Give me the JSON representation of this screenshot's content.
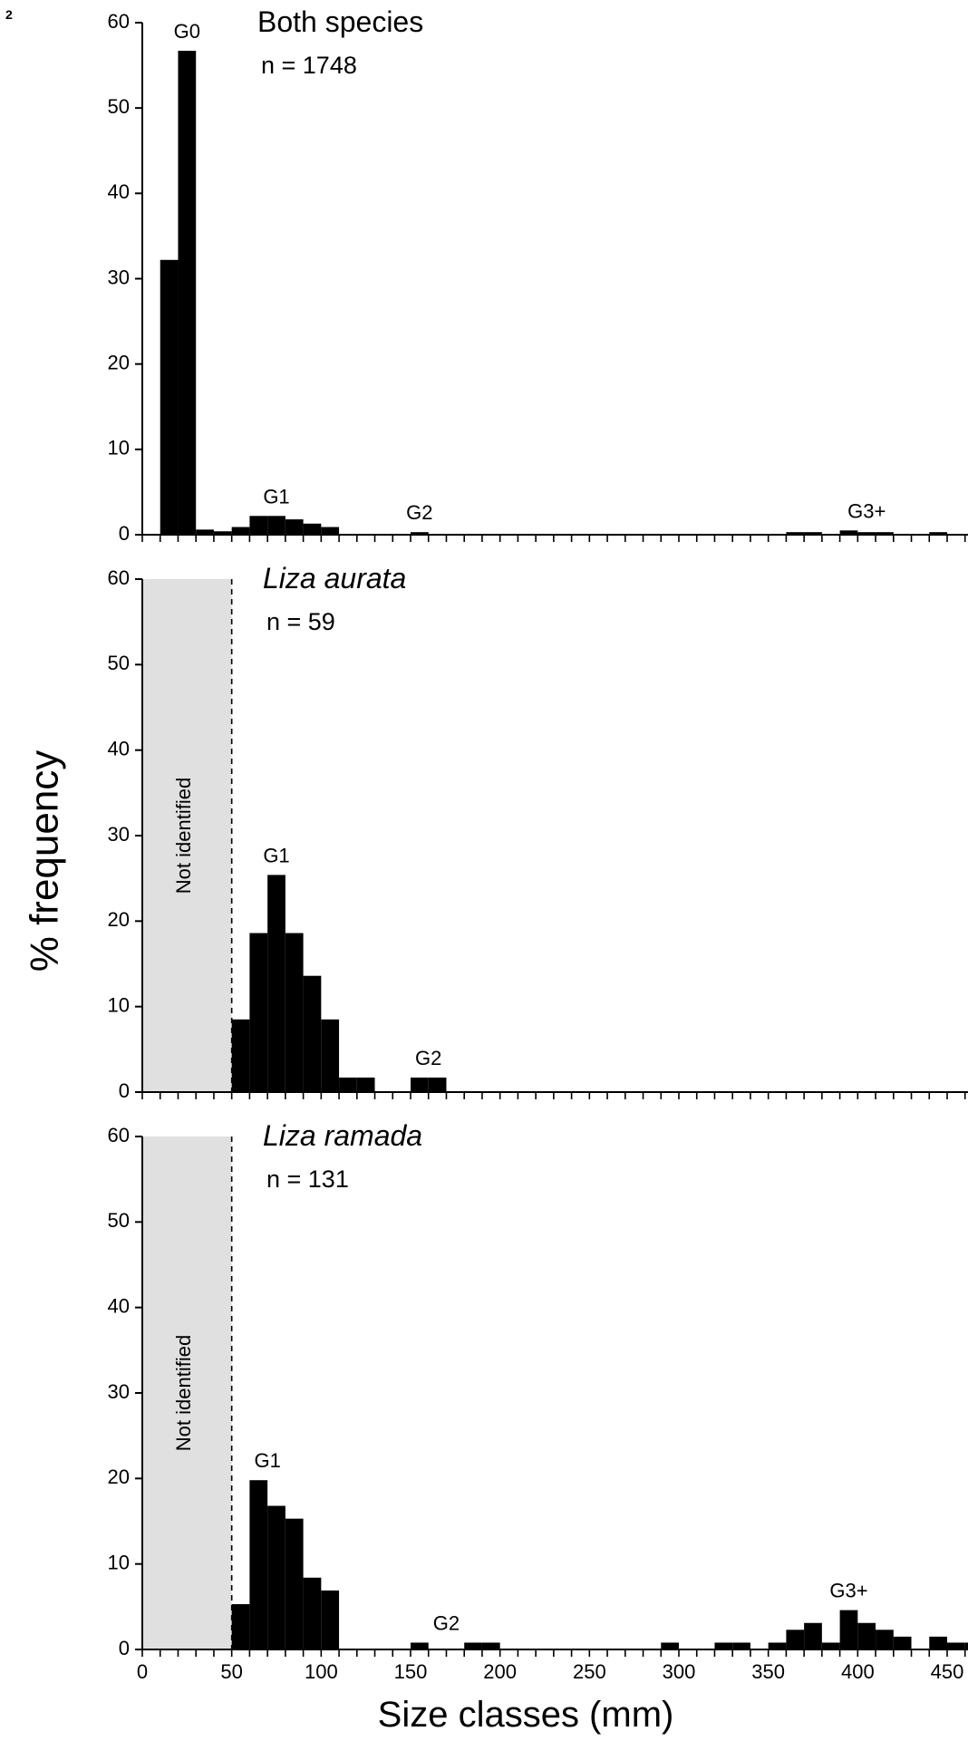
{
  "figure_label": "2",
  "chart_data": {
    "type": "bar",
    "ylabel": "% frequency",
    "xlabel": "Size classes (mm)",
    "bin_width": 10,
    "xlim": [
      0,
      470
    ],
    "xticks": [
      0,
      50,
      100,
      150,
      200,
      250,
      300,
      350,
      400,
      450
    ],
    "ylim": [
      0,
      60
    ],
    "yticks": [
      0,
      10,
      20,
      30,
      40,
      50,
      60
    ],
    "bar_color": "#000000",
    "shade_color": "#e0e0e0",
    "panels": [
      {
        "title": "Both species",
        "title_italic": false,
        "n_label": "n = 1748",
        "not_identified": null,
        "bins": [
          {
            "x": 10,
            "y": 32.2
          },
          {
            "x": 20,
            "y": 56.7
          },
          {
            "x": 30,
            "y": 0.6
          },
          {
            "x": 40,
            "y": 0.4
          },
          {
            "x": 50,
            "y": 0.9
          },
          {
            "x": 60,
            "y": 2.2
          },
          {
            "x": 70,
            "y": 2.2
          },
          {
            "x": 80,
            "y": 1.8
          },
          {
            "x": 90,
            "y": 1.3
          },
          {
            "x": 100,
            "y": 0.9
          },
          {
            "x": 150,
            "y": 0.3
          },
          {
            "x": 360,
            "y": 0.3
          },
          {
            "x": 370,
            "y": 0.3
          },
          {
            "x": 390,
            "y": 0.5
          },
          {
            "x": 400,
            "y": 0.3
          },
          {
            "x": 410,
            "y": 0.3
          },
          {
            "x": 440,
            "y": 0.3
          }
        ],
        "groups": [
          {
            "label": "G0",
            "x": 25,
            "y": 56.7
          },
          {
            "label": "G1",
            "x": 75,
            "y": 2.2
          },
          {
            "label": "G2",
            "x": 155,
            "y": 0.3
          },
          {
            "label": "G3+",
            "x": 405,
            "y": 0.5
          }
        ]
      },
      {
        "title": "Liza aurata",
        "title_italic": true,
        "n_label": "n = 59",
        "not_identified": {
          "label": "Not identified",
          "x_max": 50
        },
        "bins": [
          {
            "x": 50,
            "y": 8.5
          },
          {
            "x": 60,
            "y": 18.6
          },
          {
            "x": 70,
            "y": 25.4
          },
          {
            "x": 80,
            "y": 18.6
          },
          {
            "x": 90,
            "y": 13.6
          },
          {
            "x": 100,
            "y": 8.5
          },
          {
            "x": 110,
            "y": 1.7
          },
          {
            "x": 120,
            "y": 1.7
          },
          {
            "x": 150,
            "y": 1.7
          },
          {
            "x": 160,
            "y": 1.7
          }
        ],
        "groups": [
          {
            "label": "G1",
            "x": 75,
            "y": 25.4
          },
          {
            "label": "G2",
            "x": 160,
            "y": 1.7
          }
        ]
      },
      {
        "title": "Liza ramada",
        "title_italic": true,
        "n_label": "n = 131",
        "not_identified": {
          "label": "Not identified",
          "x_max": 50
        },
        "bins": [
          {
            "x": 50,
            "y": 5.3
          },
          {
            "x": 60,
            "y": 19.8
          },
          {
            "x": 70,
            "y": 16.8
          },
          {
            "x": 80,
            "y": 15.3
          },
          {
            "x": 90,
            "y": 8.4
          },
          {
            "x": 100,
            "y": 6.9
          },
          {
            "x": 150,
            "y": 0.8
          },
          {
            "x": 180,
            "y": 0.8
          },
          {
            "x": 190,
            "y": 0.8
          },
          {
            "x": 290,
            "y": 0.8
          },
          {
            "x": 320,
            "y": 0.8
          },
          {
            "x": 330,
            "y": 0.8
          },
          {
            "x": 350,
            "y": 0.8
          },
          {
            "x": 360,
            "y": 2.3
          },
          {
            "x": 370,
            "y": 3.1
          },
          {
            "x": 380,
            "y": 0.8
          },
          {
            "x": 390,
            "y": 4.6
          },
          {
            "x": 400,
            "y": 3.1
          },
          {
            "x": 410,
            "y": 2.3
          },
          {
            "x": 420,
            "y": 1.5
          },
          {
            "x": 440,
            "y": 1.5
          },
          {
            "x": 450,
            "y": 0.8
          },
          {
            "x": 460,
            "y": 0.8
          }
        ],
        "groups": [
          {
            "label": "G1",
            "x": 70,
            "y": 19.8
          },
          {
            "label": "G2",
            "x": 170,
            "y": 0.8
          },
          {
            "label": "G3+",
            "x": 395,
            "y": 4.6
          }
        ]
      }
    ]
  }
}
